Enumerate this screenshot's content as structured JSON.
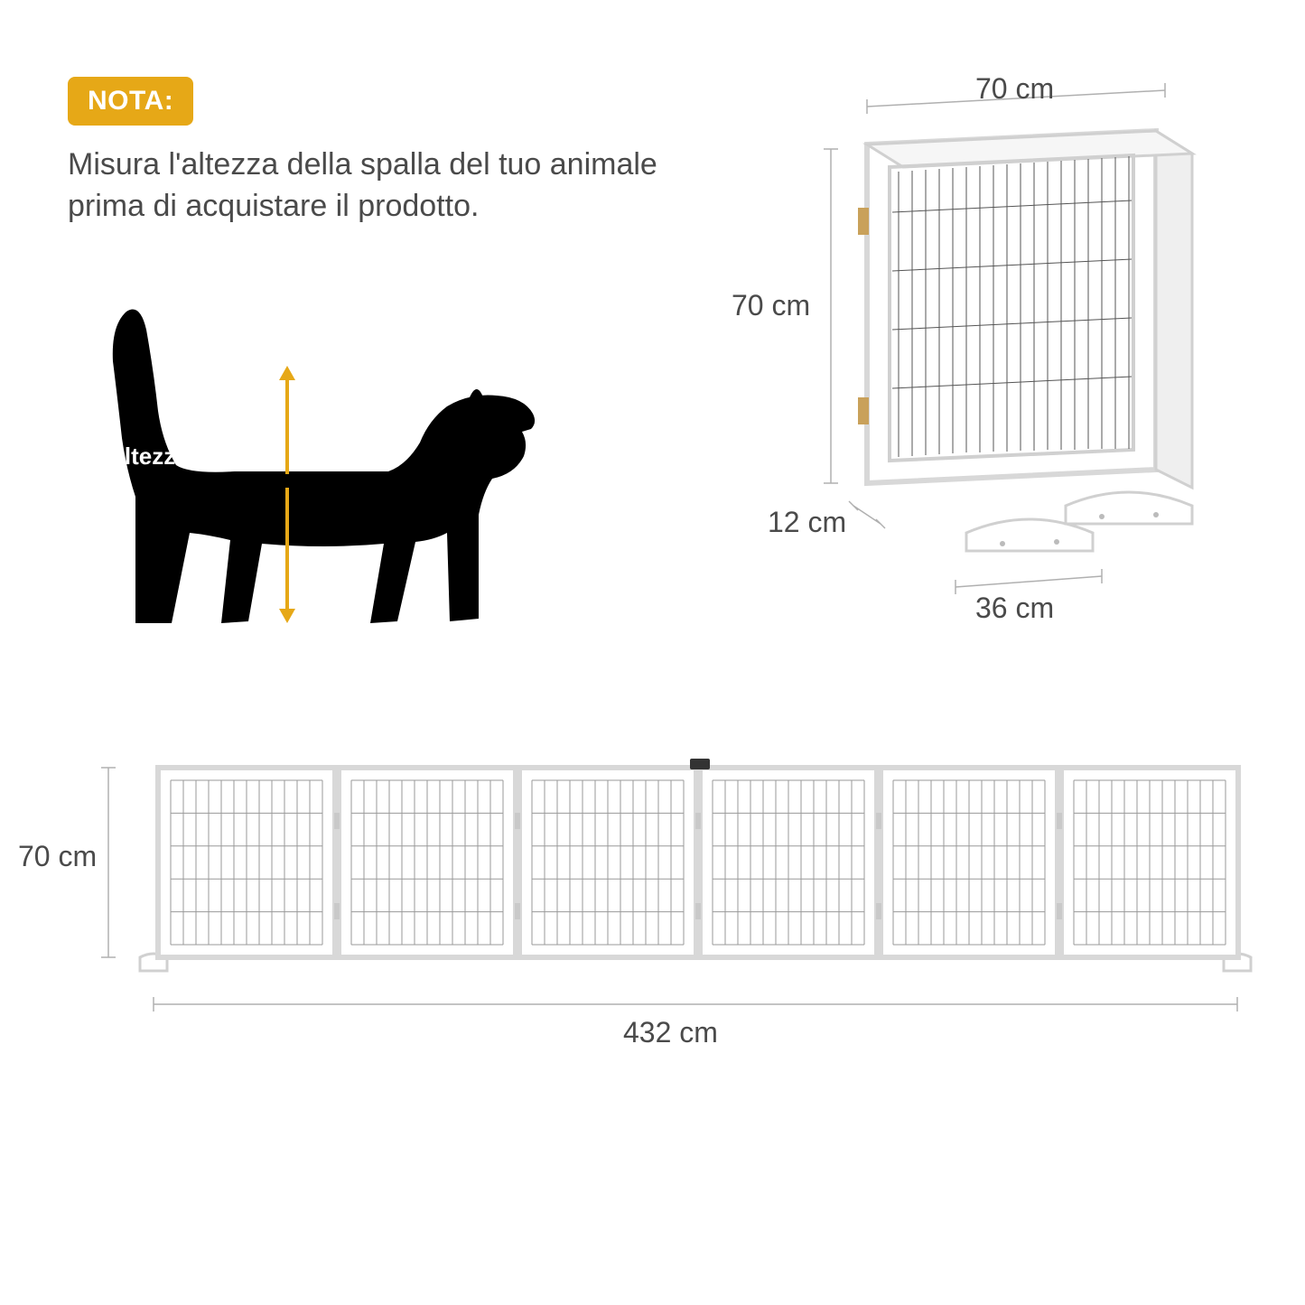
{
  "colors": {
    "badge_bg": "#e6a817",
    "badge_text": "#ffffff",
    "body_text": "#4a4a4a",
    "dog_fill": "#000000",
    "arrow": "#e6a817",
    "dim_text": "#4a4a4a",
    "guide": "#b0b0b0",
    "frame": "#d8d8d8",
    "mesh": "#9a9a9a",
    "background": "#ffffff"
  },
  "badge": {
    "label": "NOTA:"
  },
  "note": {
    "text": "Misura l'altezza della spalla del tuo animale prima di acquistare il prodotto."
  },
  "dog": {
    "label": "l'altezza della spalla"
  },
  "folded": {
    "width_label": "70 cm",
    "height_label": "70 cm",
    "depth_label": "12 cm",
    "foot_label": "36 cm"
  },
  "extended": {
    "width_label": "432 cm",
    "height_label": "70 cm",
    "panel_count": 6,
    "mesh_rows": 5,
    "mesh_cols": 12
  }
}
